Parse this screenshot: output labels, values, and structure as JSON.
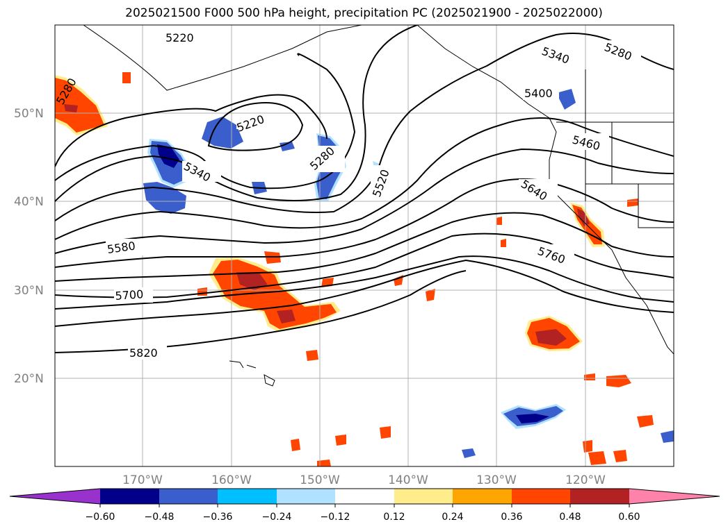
{
  "title": "2025021500 F000 500 hPa height, precipitation PC (2025021900 - 2025022000)",
  "map": {
    "lat_labels": [
      "50°N",
      "40°N",
      "30°N",
      "20°N"
    ],
    "lon_labels": [
      "170°W",
      "160°W",
      "150°W",
      "140°W",
      "130°W",
      "120°W"
    ],
    "contour_labels": [
      "5220",
      "5340",
      "5280",
      "5220",
      "5340",
      "5280",
      "5520",
      "5400",
      "5460",
      "5640",
      "5760",
      "5580",
      "5700",
      "5820",
      "5280"
    ]
  },
  "colorbar": {
    "colors": [
      "#9932cc",
      "#00008b",
      "#3a5fcd",
      "#00bfff",
      "#b0e2ff",
      "#ffffff",
      "#ffec8b",
      "#ffa500",
      "#ff4500",
      "#b22222",
      "#ff82ab"
    ],
    "ticks": [
      "−0.60",
      "−0.48",
      "−0.36",
      "−0.24",
      "−0.12",
      "0.12",
      "0.24",
      "0.36",
      "0.48",
      "0.60"
    ]
  },
  "chart_data": {
    "type": "heatmap",
    "title": "2025021500 F000 500 hPa height, precipitation PC (2025021900 - 2025022000)",
    "colorbar_levels": [
      -0.6,
      -0.48,
      -0.36,
      -0.24,
      -0.12,
      0.12,
      0.24,
      0.36,
      0.48,
      0.6
    ],
    "colorbar_extend": "both",
    "height_contours": [
      5220,
      5280,
      5340,
      5400,
      5460,
      5520,
      5580,
      5640,
      5700,
      5760,
      5820
    ],
    "lat_ticks": [
      50,
      40,
      30,
      20
    ],
    "lon_ticks": [
      -170,
      -160,
      -150,
      -140,
      -130,
      -120
    ],
    "grid": true
  }
}
